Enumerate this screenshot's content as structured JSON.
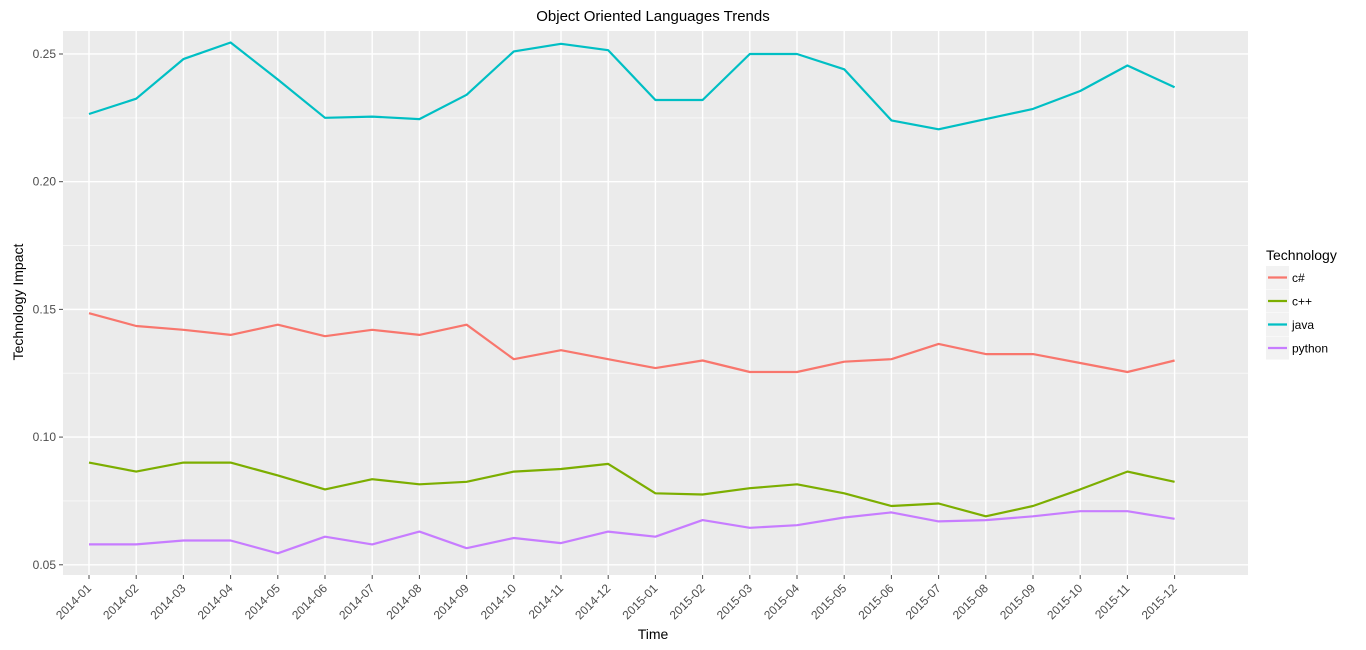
{
  "chart_data": {
    "type": "line",
    "title": "Object Oriented Languages Trends",
    "xlabel": "Time",
    "ylabel": "Technology Impact",
    "ylim": [
      0.046,
      0.259
    ],
    "yticks": [
      0.05,
      0.1,
      0.15,
      0.2,
      0.25
    ],
    "ytick_labels": [
      "0.05",
      "0.10",
      "0.15",
      "0.20",
      "0.25"
    ],
    "grid": true,
    "legend_position": "right",
    "legend_title": "Technology",
    "categories": [
      "2014-01",
      "2014-02",
      "2014-03",
      "2014-04",
      "2014-05",
      "2014-06",
      "2014-07",
      "2014-08",
      "2014-09",
      "2014-10",
      "2014-11",
      "2014-12",
      "2015-01",
      "2015-02",
      "2015-03",
      "2015-04",
      "2015-05",
      "2015-06",
      "2015-07",
      "2015-08",
      "2015-09",
      "2015-10",
      "2015-11",
      "2015-12"
    ],
    "series": [
      {
        "name": "c#",
        "color": "#F8766D",
        "values": [
          0.1485,
          0.1435,
          0.142,
          0.14,
          0.144,
          0.1395,
          0.142,
          0.14,
          0.144,
          0.1305,
          0.134,
          0.1305,
          0.127,
          0.13,
          0.1255,
          0.1255,
          0.1295,
          0.1305,
          0.1365,
          0.1325,
          0.1325,
          0.129,
          0.1255,
          0.13
        ]
      },
      {
        "name": "c++",
        "color": "#7CAE00",
        "values": [
          0.09,
          0.0865,
          0.09,
          0.09,
          0.085,
          0.0795,
          0.0835,
          0.0815,
          0.0825,
          0.0865,
          0.0875,
          0.0895,
          0.078,
          0.0775,
          0.08,
          0.0815,
          0.078,
          0.073,
          0.074,
          0.069,
          0.073,
          0.0795,
          0.0865,
          0.0825
        ]
      },
      {
        "name": "java",
        "color": "#00BFC4",
        "values": [
          0.2265,
          0.2325,
          0.248,
          0.2545,
          0.24,
          0.225,
          0.2255,
          0.2245,
          0.234,
          0.251,
          0.254,
          0.2515,
          0.232,
          0.232,
          0.25,
          0.25,
          0.244,
          0.224,
          0.2205,
          0.2245,
          0.2285,
          0.2355,
          0.2455,
          0.237
        ]
      },
      {
        "name": "python",
        "color": "#C77CFF",
        "values": [
          0.058,
          0.058,
          0.0595,
          0.0595,
          0.0545,
          0.061,
          0.058,
          0.063,
          0.0565,
          0.0605,
          0.0585,
          0.063,
          0.061,
          0.0675,
          0.0645,
          0.0655,
          0.0685,
          0.0705,
          0.067,
          0.0675,
          0.069,
          0.071,
          0.071,
          0.068
        ]
      }
    ]
  },
  "style": {
    "panel_bg": "#EBEBEB",
    "grid_major": "#FFFFFF",
    "grid_minor": "#F7F7F7",
    "tick_color": "#4D4D4D"
  }
}
